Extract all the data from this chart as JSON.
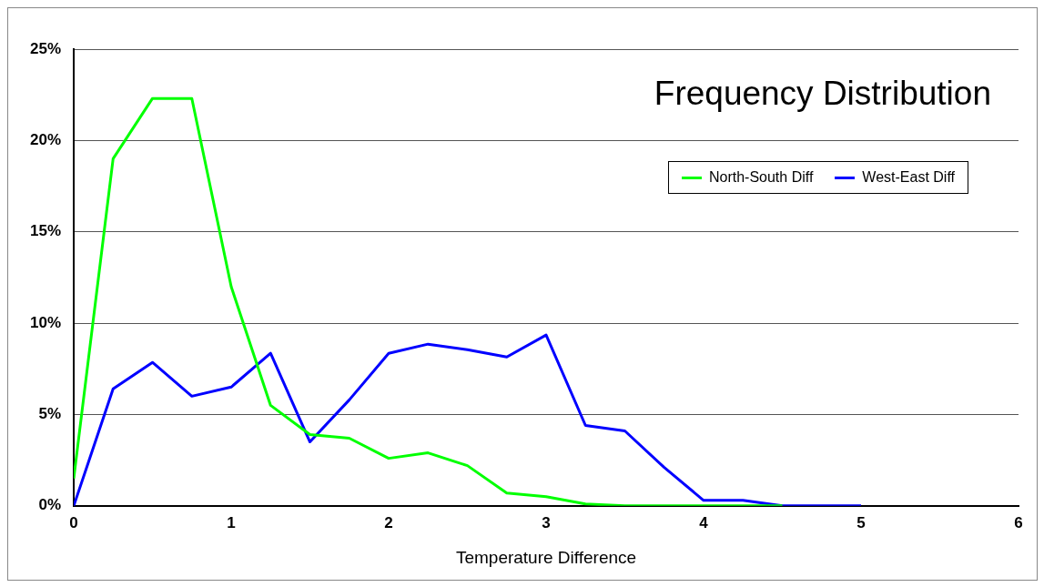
{
  "chart_data": {
    "type": "line",
    "title": "Frequency Distribution",
    "xlabel": "Temperature Difference",
    "x": [
      0,
      0.25,
      0.5,
      0.75,
      1,
      1.25,
      1.5,
      1.75,
      2,
      2.25,
      2.5,
      2.75,
      3,
      3.25,
      3.5,
      3.75,
      4,
      4.25,
      4.5,
      4.75,
      5
    ],
    "series": [
      {
        "name": "North-South Diff",
        "color": "#00ff00",
        "values": [
          1.5,
          19,
          22.3,
          22.3,
          12,
          5.5,
          3.9,
          3.7,
          2.6,
          2.9,
          2.2,
          0.7,
          0.5,
          0.1,
          0,
          0,
          0,
          0,
          0,
          null,
          null
        ]
      },
      {
        "name": "West-East Diff",
        "color": "#0000ff",
        "values": [
          0,
          6.4,
          7.85,
          6,
          6.5,
          8.35,
          3.5,
          5.8,
          8.35,
          8.85,
          8.55,
          8.15,
          9.35,
          4.4,
          4.1,
          2.1,
          0.3,
          0.3,
          0,
          0,
          0
        ]
      }
    ],
    "xlim": [
      0,
      6
    ],
    "xticks": [
      0,
      1,
      2,
      3,
      4,
      5,
      6
    ],
    "ylim": [
      0,
      25
    ],
    "yticks": [
      {
        "value": 0,
        "label": "0%"
      },
      {
        "value": 5,
        "label": "5%"
      },
      {
        "value": 10,
        "label": "10%"
      },
      {
        "value": 15,
        "label": "15%"
      },
      {
        "value": 20,
        "label": "20%"
      },
      {
        "value": 25,
        "label": "25%"
      }
    ],
    "grid": "y",
    "legend": "top right",
    "marker": "none",
    "line_style": "solid"
  }
}
